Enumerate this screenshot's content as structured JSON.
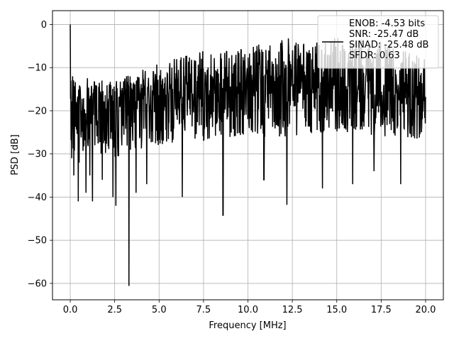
{
  "chart_data": {
    "type": "line",
    "xlabel": "Frequency [MHz]",
    "ylabel": "PSD [dB]",
    "xlim": [
      -1,
      21
    ],
    "ylim": [
      -63.8,
      3.2
    ],
    "grid": true,
    "x_ticks": [
      0.0,
      2.5,
      5.0,
      7.5,
      10.0,
      12.5,
      15.0,
      17.5,
      20.0
    ],
    "x_tick_labels": [
      "0.0",
      "2.5",
      "5.0",
      "7.5",
      "10.0",
      "12.5",
      "15.0",
      "17.5",
      "20.0"
    ],
    "y_ticks": [
      0,
      -10,
      -20,
      -30,
      -40,
      -50,
      -60
    ],
    "y_tick_labels": [
      "0",
      "−10",
      "−20",
      "−30",
      "−40",
      "−50",
      "−60"
    ],
    "legend": {
      "placement": "upper right",
      "lines": [
        "ENOB: -4.53 bits",
        "SNR: -25.47 dB",
        "SINAD: -25.48 dB",
        "SFDR: 0.63"
      ]
    },
    "series": [
      {
        "color": "#000000",
        "x_range": [
          0,
          20
        ],
        "num_points": 1200,
        "x": [
          0,
          0.03,
          0.09,
          0.13,
          0.2,
          0.45,
          0.5,
          0.88,
          1.1,
          1.25,
          1.8,
          2.4,
          2.57,
          3.3,
          3.7,
          4.3,
          6.3,
          8.6,
          10.9,
          12.2,
          14.2,
          15.9,
          17.1,
          18.6
        ],
        "y": [
          0,
          -13,
          -31,
          -12,
          -35,
          -41,
          -32,
          -39,
          -35,
          -41,
          -36,
          -40,
          -42,
          -60.6,
          -39,
          -37,
          -40,
          -44.2,
          -36,
          -41.8,
          -38,
          -37,
          -34,
          -37
        ],
        "trend_top": [
          [
            0,
            -12
          ],
          [
            2.5,
            -13
          ],
          [
            5,
            -9
          ],
          [
            7.5,
            -6
          ],
          [
            10,
            -5
          ],
          [
            12.5,
            -3
          ],
          [
            15,
            -3
          ],
          [
            17.5,
            -4
          ],
          [
            20,
            -7
          ]
        ],
        "trend_center": [
          [
            0,
            -20
          ],
          [
            2.5,
            -19
          ],
          [
            5,
            -17
          ],
          [
            7.5,
            -16
          ],
          [
            10,
            -15
          ],
          [
            12.5,
            -14.5
          ],
          [
            15,
            -14
          ],
          [
            17.5,
            -14.5
          ],
          [
            20,
            -16
          ]
        ],
        "trend_bottom": [
          [
            0,
            -30
          ],
          [
            2.5,
            -31
          ],
          [
            5,
            -28
          ],
          [
            7.5,
            -27
          ],
          [
            10,
            -26
          ],
          [
            12.5,
            -26
          ],
          [
            15,
            -25
          ],
          [
            17.5,
            -26
          ],
          [
            20,
            -27
          ]
        ]
      }
    ]
  },
  "colors": {
    "line": "#000000",
    "grid": "#b0b0b0",
    "legend_bg": "#ffffff"
  }
}
